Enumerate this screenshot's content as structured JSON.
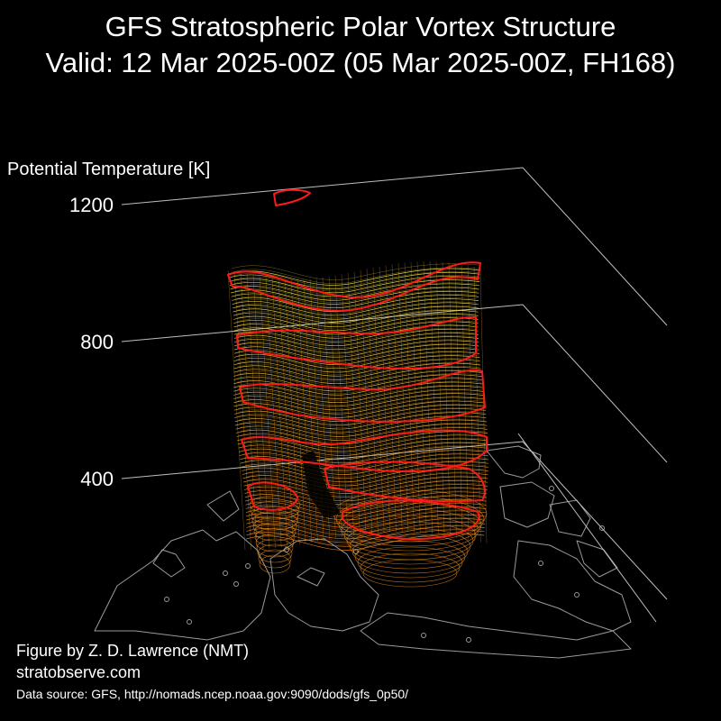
{
  "chart_data": {
    "type": "3d-surface",
    "title": "GFS Stratospheric Polar Vortex Structure",
    "subtitle": "Valid: 12 Mar 2025-00Z  (05 Mar 2025-00Z, FH168)",
    "zlabel": "Potential Temperature [K]",
    "z_ticks": [
      {
        "label": "1200",
        "value": 1200
      },
      {
        "label": "800",
        "value": 800
      },
      {
        "label": "400",
        "value": 400
      }
    ],
    "colors": {
      "background": "#000000",
      "contour_highlight": "#ff1a1a",
      "surface_top": "#f2e640",
      "surface_bottom": "#e8821a",
      "coastline": "#9a9a9a",
      "axis_lines": "#bfbfbf"
    }
  },
  "footer": {
    "credit": "Figure by Z. D. Lawrence (NMT)",
    "site": "stratobserve.com",
    "source": "Data source: GFS, http://nomads.ncep.noaa.gov:9090/dods/gfs_0p50/"
  }
}
